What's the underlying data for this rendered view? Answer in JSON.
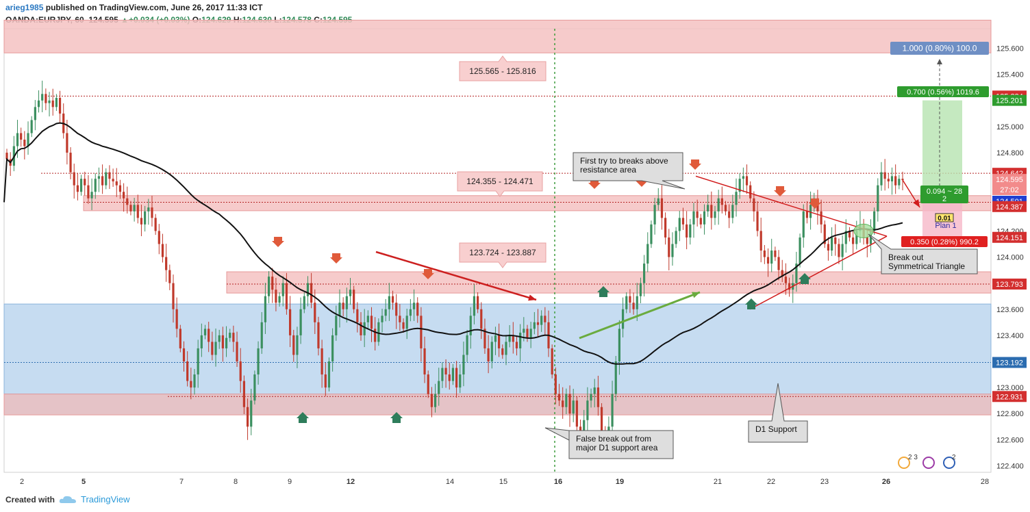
{
  "header": {
    "user": "arieg1985",
    "published": "published on TradingView.com, June 26, 2017 11:33 ICT",
    "symbol": "OANDA:EURJPY, 60",
    "last": "124.595",
    "change_arrow": "▲",
    "change": "+0.034 (+0.03%)",
    "o_label": "O:",
    "o": "124.629",
    "h_label": "H:",
    "h": "124.630",
    "l_label": "L:",
    "l": "124.578",
    "c_label": "C:",
    "c": "124.595"
  },
  "footer": {
    "created": "Created with",
    "brand": "TradingView",
    "logo_icon": "tradingview-cloud-icon"
  },
  "colors": {
    "bull": "#3b8f5f",
    "bear": "#c0392b",
    "resistance_fill": "#f4c2c2",
    "support_fill": "#bcd6ee",
    "ma": "#111111",
    "green_arrow": "#6aab3e",
    "red_arrow": "#cc1f1f"
  },
  "chart_data": {
    "type": "candlestick",
    "ylim": [
      122.35,
      125.75
    ],
    "x_ticks": [
      "2",
      "5",
      "7",
      "8",
      "9",
      "12",
      "14",
      "15",
      "16",
      "19",
      "21",
      "22",
      "23",
      "26",
      "28"
    ],
    "y_ticks": [
      "125.600",
      "125.400",
      "125.200",
      "125.000",
      "124.800",
      "124.600",
      "124.400",
      "124.200",
      "124.000",
      "123.800",
      "123.600",
      "123.400",
      "123.200",
      "123.000",
      "122.800",
      "122.600",
      "122.400"
    ],
    "price_tags": [
      {
        "text": "125.234",
        "value": 125.234,
        "color": "#d32f2f"
      },
      {
        "text": "125.201",
        "value": 125.201,
        "color": "#2e9c2e"
      },
      {
        "text": "124.642",
        "value": 124.642,
        "color": "#d32f2f"
      },
      {
        "text": "124.595",
        "value": 124.595,
        "color": "#f28b8b"
      },
      {
        "text": "27:02",
        "value": 124.495,
        "color": "#f28b8b"
      },
      {
        "text": "124.501",
        "value": 124.501,
        "color": "#1f3fd1"
      },
      {
        "text": "124.387",
        "value": 124.387,
        "color": "#d32f2f"
      },
      {
        "text": "124.151",
        "value": 124.151,
        "color": "#d32f2f"
      },
      {
        "text": "123.793",
        "value": 123.793,
        "color": "#d32f2f"
      },
      {
        "text": "123.192",
        "value": 123.192,
        "color": "#2b6cb0"
      },
      {
        "text": "122.931",
        "value": 122.931,
        "color": "#d32f2f"
      }
    ],
    "zones": [
      {
        "kind": "resistance",
        "from": 125.565,
        "to": 125.816,
        "label": "125.565 - 125.816"
      },
      {
        "kind": "resistance",
        "from": 124.355,
        "to": 124.471,
        "label": "124.355 - 124.471"
      },
      {
        "kind": "resistance",
        "from": 123.724,
        "to": 123.887,
        "label": "123.724 - 123.887"
      },
      {
        "kind": "support",
        "from": 122.95,
        "to": 123.64,
        "label": ""
      },
      {
        "kind": "support_d1",
        "from": 122.79,
        "to": 122.95,
        "label": ""
      }
    ],
    "annotations": [
      {
        "text": "First try to breaks above resistance area",
        "lines": [
          "First try to breaks above",
          "resistance area"
        ]
      },
      {
        "text": "Break out Symmetrical Triangle",
        "lines": [
          "Break out",
          "Symmetrical Triangle"
        ]
      },
      {
        "text": "D1 Support",
        "lines": [
          "D1 Support"
        ]
      },
      {
        "text": "False break out from major D1 support area",
        "lines": [
          "False break out from",
          "major D1 support area"
        ]
      }
    ],
    "position": {
      "target_label": "1.000 (0.80%) 100.0",
      "tp_label": "0.700 (0.56%) 1019.6",
      "sl_label": "0.350 (0.28%) 990.2",
      "entry_label_line1": "0.094 ~ 28",
      "entry_label_line2": "2",
      "lot": "0.01",
      "plan": "Plan 1",
      "entry": 124.501,
      "tp": 125.201,
      "sl": 124.151
    },
    "candles_close": [
      124.75,
      124.7,
      124.85,
      124.95,
      124.9,
      124.85,
      124.95,
      125.05,
      125.15,
      125.2,
      125.25,
      125.18,
      125.2,
      125.15,
      125.22,
      125.1,
      124.95,
      124.8,
      124.65,
      124.55,
      124.5,
      124.6,
      124.55,
      124.45,
      124.5,
      124.6,
      124.62,
      124.55,
      124.65,
      124.6,
      124.58,
      124.55,
      124.5,
      124.45,
      124.4,
      124.35,
      124.4,
      124.3,
      124.25,
      124.35,
      124.38,
      124.3,
      124.2,
      124.1,
      124.0,
      123.9,
      123.8,
      123.6,
      123.45,
      123.3,
      123.2,
      123.05,
      123.0,
      123.1,
      123.3,
      123.4,
      123.45,
      123.35,
      123.25,
      123.35,
      123.4,
      123.3,
      123.38,
      123.42,
      123.35,
      123.2,
      123.05,
      122.85,
      122.7,
      122.9,
      123.1,
      123.3,
      123.5,
      123.7,
      123.85,
      123.75,
      123.65,
      123.7,
      123.8,
      123.6,
      123.4,
      123.25,
      123.4,
      123.6,
      123.7,
      123.8,
      123.65,
      123.5,
      123.3,
      123.1,
      123.0,
      123.2,
      123.4,
      123.55,
      123.65,
      123.6,
      123.7,
      123.75,
      123.6,
      123.5,
      123.4,
      123.5,
      123.55,
      123.45,
      123.35,
      123.5,
      123.55,
      123.6,
      123.7,
      123.65,
      123.55,
      123.5,
      123.45,
      123.55,
      123.6,
      123.65,
      123.55,
      123.3,
      123.1,
      122.95,
      122.85,
      122.95,
      123.05,
      123.15,
      123.1,
      123.05,
      123.15,
      123.0,
      123.1,
      123.25,
      123.4,
      123.55,
      123.7,
      123.6,
      123.45,
      123.3,
      123.2,
      123.35,
      123.4,
      123.3,
      123.25,
      123.35,
      123.4,
      123.35,
      123.3,
      123.42,
      123.45,
      123.38,
      123.45,
      123.5,
      123.48,
      123.55,
      123.5,
      123.3,
      123.1,
      122.95,
      122.9,
      122.85,
      122.95,
      122.8,
      122.9,
      122.7,
      122.6,
      122.75,
      122.9,
      122.95,
      123.0,
      122.85,
      122.65,
      122.55,
      122.7,
      122.95,
      123.2,
      123.45,
      123.6,
      123.7,
      123.65,
      123.6,
      123.7,
      123.8,
      123.95,
      124.1,
      124.25,
      124.4,
      124.45,
      124.3,
      124.15,
      124.0,
      124.1,
      124.2,
      124.3,
      124.25,
      124.15,
      124.25,
      124.35,
      124.3,
      124.25,
      124.35,
      124.4,
      124.3,
      124.35,
      124.45,
      124.4,
      124.35,
      124.3,
      124.4,
      124.5,
      124.6,
      124.62,
      124.55,
      124.45,
      124.35,
      124.2,
      124.05,
      124.0,
      123.95,
      124.05,
      124.0,
      123.9,
      123.85,
      123.8,
      123.75,
      123.8,
      123.95,
      124.15,
      124.35,
      124.3,
      124.4,
      124.45,
      124.35,
      124.25,
      124.1,
      124.05,
      124.15,
      124.1,
      124.0,
      124.1,
      124.2,
      124.15,
      124.1,
      124.2,
      124.25,
      124.15,
      124.1,
      124.2,
      124.35,
      124.55,
      124.65,
      124.6,
      124.58,
      124.62,
      124.55,
      124.6,
      124.59
    ]
  }
}
